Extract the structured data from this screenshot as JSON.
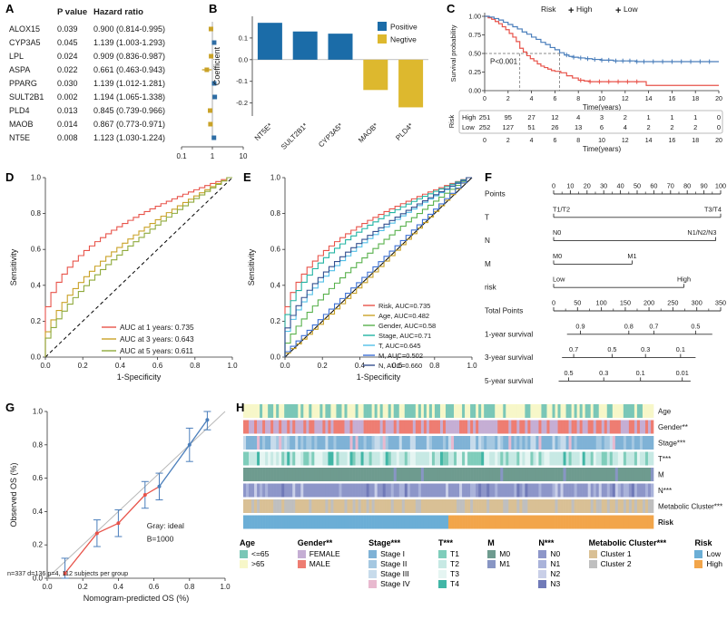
{
  "chart_data": [
    {
      "letter": "A",
      "type": "table",
      "subtype": "forest-plot",
      "headers": [
        "P value",
        "Hazard ratio"
      ],
      "rows": [
        {
          "gene": "ALOX15",
          "p": "0.039",
          "hr_text": "0.900 (0.814-0.995)",
          "hr": 0.9,
          "lo": 0.814,
          "hi": 0.995
        },
        {
          "gene": "CYP3A5",
          "p": "0.045",
          "hr_text": "1.139 (1.003-1.293)",
          "hr": 1.139,
          "lo": 1.003,
          "hi": 1.293
        },
        {
          "gene": "LPL",
          "p": "0.024",
          "hr_text": "0.909 (0.836-0.987)",
          "hr": 0.909,
          "lo": 0.836,
          "hi": 0.987
        },
        {
          "gene": "ASPA",
          "p": "0.022",
          "hr_text": "0.661 (0.463-0.943)",
          "hr": 0.661,
          "lo": 0.463,
          "hi": 0.943
        },
        {
          "gene": "PPARG",
          "p": "0.030",
          "hr_text": "1.139 (1.012-1.281)",
          "hr": 1.139,
          "lo": 1.012,
          "hi": 1.281
        },
        {
          "gene": "SULT2B1",
          "p": "0.002",
          "hr_text": "1.194 (1.065-1.338)",
          "hr": 1.194,
          "lo": 1.065,
          "hi": 1.338
        },
        {
          "gene": "PLD4",
          "p": "0.013",
          "hr_text": "0.845 (0.739-0.966)",
          "hr": 0.845,
          "lo": 0.739,
          "hi": 0.966
        },
        {
          "gene": "MAOB",
          "p": "0.014",
          "hr_text": "0.867 (0.773-0.971)",
          "hr": 0.867,
          "lo": 0.773,
          "hi": 0.971
        },
        {
          "gene": "NT5E",
          "p": "0.008",
          "hr_text": "1.123 (1.030-1.224)",
          "hr": 1.123,
          "lo": 1.03,
          "hi": 1.224
        }
      ],
      "x_ticks": [
        "0.1",
        "1",
        "10"
      ],
      "colors": {
        "up": "#2e6da4",
        "down": "#c9a227",
        "ref": "#999999"
      }
    },
    {
      "letter": "B",
      "type": "bar",
      "ylabel": "Coefficient",
      "categories": [
        "NT5E*",
        "SULT2B1*",
        "CYP3A5*",
        "MAOB*",
        "PLD4*"
      ],
      "values": [
        0.17,
        0.13,
        0.12,
        -0.14,
        -0.22
      ],
      "ylim": [
        -0.26,
        0.2
      ],
      "yticks": [
        "0.1",
        "0.0",
        "-0.1",
        "-0.2"
      ],
      "ytick_vals": [
        0.1,
        0.0,
        -0.1,
        -0.2
      ],
      "legend": [
        {
          "label": "Positive",
          "color": "#1b6ca8"
        },
        {
          "label": "Negtive",
          "color": "#ddb82e"
        }
      ]
    },
    {
      "letter": "C",
      "type": "line",
      "subtype": "kaplan-meier",
      "legend_title": "Risk",
      "series": [
        {
          "name": "High",
          "color": "#e8534a",
          "points": [
            [
              0,
              1
            ],
            [
              0.3,
              0.98
            ],
            [
              0.6,
              0.96
            ],
            [
              0.9,
              0.93
            ],
            [
              1.2,
              0.9
            ],
            [
              1.5,
              0.86
            ],
            [
              1.8,
              0.82
            ],
            [
              2.1,
              0.77
            ],
            [
              2.4,
              0.72
            ],
            [
              2.7,
              0.66
            ],
            [
              3,
              0.57
            ],
            [
              3.3,
              0.52
            ],
            [
              3.6,
              0.47
            ],
            [
              3.9,
              0.43
            ],
            [
              4.2,
              0.4
            ],
            [
              4.5,
              0.36
            ],
            [
              4.8,
              0.33
            ],
            [
              5.1,
              0.31
            ],
            [
              5.4,
              0.29
            ],
            [
              5.7,
              0.27
            ],
            [
              6,
              0.26
            ],
            [
              6.5,
              0.24
            ],
            [
              7,
              0.2
            ],
            [
              7.5,
              0.17
            ],
            [
              8,
              0.14
            ],
            [
              8.5,
              0.13
            ],
            [
              9,
              0.12
            ],
            [
              10,
              0.12
            ],
            [
              12,
              0.12
            ],
            [
              13.8,
              0.07
            ],
            [
              20,
              0.07
            ]
          ],
          "censors": [
            8.2,
            9,
            9.8,
            10.6,
            11.4,
            12.2,
            13
          ]
        },
        {
          "name": "Low",
          "color": "#4a7ebb",
          "points": [
            [
              0,
              1
            ],
            [
              0.4,
              0.99
            ],
            [
              0.8,
              0.97
            ],
            [
              1.2,
              0.95
            ],
            [
              1.6,
              0.92
            ],
            [
              2,
              0.89
            ],
            [
              2.4,
              0.86
            ],
            [
              2.8,
              0.83
            ],
            [
              3.2,
              0.79
            ],
            [
              3.6,
              0.76
            ],
            [
              4,
              0.72
            ],
            [
              4.4,
              0.69
            ],
            [
              4.8,
              0.65
            ],
            [
              5.2,
              0.62
            ],
            [
              5.6,
              0.58
            ],
            [
              6,
              0.55
            ],
            [
              6.4,
              0.51
            ],
            [
              6.8,
              0.48
            ],
            [
              7.2,
              0.46
            ],
            [
              7.6,
              0.45
            ],
            [
              8,
              0.44
            ],
            [
              8.6,
              0.43
            ],
            [
              9.2,
              0.42
            ],
            [
              10,
              0.41
            ],
            [
              11,
              0.4
            ],
            [
              12,
              0.4
            ],
            [
              13,
              0.39
            ],
            [
              20,
              0.39
            ]
          ],
          "censors": [
            7,
            7.6,
            8.2,
            8.8,
            9.4,
            10,
            10.6,
            11.2,
            11.8,
            12.4,
            13,
            13.6,
            14.4,
            15.2,
            16,
            16.8,
            17.6,
            18.4,
            19.2
          ]
        }
      ],
      "pvalue": "P<0.001",
      "ylabel": "Survival probability",
      "xlabel": "Time(years)",
      "yticks": [
        "0.00",
        "0.25",
        "0.50",
        "0.75",
        "1.00"
      ],
      "xticks": [
        0,
        2,
        4,
        6,
        8,
        10,
        12,
        14,
        16,
        18,
        20
      ],
      "xlim": [
        0,
        20
      ],
      "median": {
        "y": 0.5,
        "x1": 3,
        "x2": 6.4
      },
      "risk_table": {
        "axis_label": "Risk",
        "xlabel": "Time(years)",
        "rows": [
          {
            "name": "High",
            "color": "#e8534a",
            "counts": [
              251,
              95,
              27,
              12,
              4,
              3,
              2,
              1,
              1,
              1,
              0
            ]
          },
          {
            "name": "Low",
            "color": "#4a7ebb",
            "counts": [
              252,
              127,
              51,
              26,
              13,
              6,
              4,
              2,
              2,
              2,
              0
            ]
          }
        ]
      }
    },
    {
      "letter": "D",
      "type": "line",
      "subtype": "roc",
      "xlabel": "1-Specificity",
      "ylabel": "Sensitivity",
      "ticks": [
        "0.0",
        "0.2",
        "0.4",
        "0.6",
        "0.8",
        "1.0"
      ],
      "diagonal": "dashed",
      "series": [
        {
          "label": "AUC at 1 years: 0.735",
          "auc": 0.735,
          "color": "#e8534a"
        },
        {
          "label": "AUC at 3 years: 0.643",
          "auc": 0.643,
          "color": "#c9a227"
        },
        {
          "label": "AUC at 5 years: 0.611",
          "auc": 0.611,
          "color": "#8faa3c"
        }
      ]
    },
    {
      "letter": "E",
      "type": "line",
      "subtype": "roc",
      "xlabel": "1-Specificity",
      "ylabel": "Sensitivity",
      "ticks": [
        "0.0",
        "0.2",
        "0.4",
        "0.6",
        "0.8",
        "1.0"
      ],
      "diagonal": "solid",
      "series": [
        {
          "label": "Risk, AUC=0.735",
          "auc": 0.735,
          "color": "#e8534a"
        },
        {
          "label": "Age, AUC=0.482",
          "auc": 0.482,
          "color": "#c9a227"
        },
        {
          "label": "Gender, AUC=0.58",
          "auc": 0.58,
          "color": "#58b14c"
        },
        {
          "label": "Stage, AUC=0.71",
          "auc": 0.71,
          "color": "#21b3a2"
        },
        {
          "label": "T, AUC=0.645",
          "auc": 0.645,
          "color": "#52c0e8"
        },
        {
          "label": "M, AUC=0.502",
          "auc": 0.502,
          "color": "#3b6fd4"
        },
        {
          "label": "N, AUC=0.660",
          "auc": 0.66,
          "color": "#35508f"
        }
      ]
    },
    {
      "letter": "F",
      "type": "nomogram",
      "rows": [
        {
          "label": "Points",
          "minor": true,
          "line": [
            0,
            1
          ],
          "ticks": [
            {
              "p": 0,
              "t": "0"
            },
            {
              "p": 0.1,
              "t": "10"
            },
            {
              "p": 0.2,
              "t": "20"
            },
            {
              "p": 0.3,
              "t": "30"
            },
            {
              "p": 0.4,
              "t": "40"
            },
            {
              "p": 0.5,
              "t": "50"
            },
            {
              "p": 0.6,
              "t": "60"
            },
            {
              "p": 0.7,
              "t": "70"
            },
            {
              "p": 0.8,
              "t": "80"
            },
            {
              "p": 0.9,
              "t": "90"
            },
            {
              "p": 1,
              "t": "100"
            }
          ]
        },
        {
          "label": "T",
          "cat": true,
          "line": [
            0,
            1
          ],
          "ticks": [
            {
              "p": 0,
              "t": "T1/T2"
            },
            {
              "p": 1,
              "t": "T3/T4"
            }
          ]
        },
        {
          "label": "N",
          "cat": true,
          "line": [
            0,
            0.97
          ],
          "ticks": [
            {
              "p": 0,
              "t": "N0"
            },
            {
              "p": 0.97,
              "t": "N1/N2/N3"
            }
          ]
        },
        {
          "label": "M",
          "cat": true,
          "line": [
            0,
            0.47
          ],
          "ticks": [
            {
              "p": 0,
              "t": "M0"
            },
            {
              "p": 0.47,
              "t": "M1"
            }
          ]
        },
        {
          "label": "risk",
          "cat": true,
          "line": [
            0,
            0.78
          ],
          "ticks": [
            {
              "p": 0,
              "t": "Low"
            },
            {
              "p": 0.78,
              "t": "High"
            }
          ]
        },
        {
          "label": "Total Points",
          "minor": true,
          "line": [
            0,
            1
          ],
          "ticks": [
            {
              "p": 0,
              "t": "0"
            },
            {
              "p": 0.143,
              "t": "50"
            },
            {
              "p": 0.286,
              "t": "100"
            },
            {
              "p": 0.429,
              "t": "150"
            },
            {
              "p": 0.571,
              "t": "200"
            },
            {
              "p": 0.714,
              "t": "250"
            },
            {
              "p": 0.857,
              "t": "300"
            },
            {
              "p": 1,
              "t": "350"
            }
          ]
        },
        {
          "label": "1-year survival",
          "line": [
            0.08,
            0.95
          ],
          "ticks": [
            {
              "p": 0.16,
              "t": "0.9"
            },
            {
              "p": 0.45,
              "t": "0.8"
            },
            {
              "p": 0.6,
              "t": "0.7"
            },
            {
              "p": 0.85,
              "t": "0.5"
            }
          ]
        },
        {
          "label": "3-year survival",
          "line": [
            0.05,
            0.85
          ],
          "ticks": [
            {
              "p": 0.12,
              "t": "0.7"
            },
            {
              "p": 0.35,
              "t": "0.5"
            },
            {
              "p": 0.55,
              "t": "0.3"
            },
            {
              "p": 0.76,
              "t": "0.1"
            }
          ]
        },
        {
          "label": "5-year survival",
          "line": [
            0.03,
            0.82
          ],
          "ticks": [
            {
              "p": 0.09,
              "t": "0.5"
            },
            {
              "p": 0.3,
              "t": "0.3"
            },
            {
              "p": 0.52,
              "t": "0.1"
            },
            {
              "p": 0.77,
              "t": "0.01"
            }
          ]
        }
      ]
    },
    {
      "letter": "G",
      "type": "scatter",
      "subtype": "calibration",
      "xlabel": "Nomogram-predicted OS (%)",
      "ylabel": "Observed OS (%)",
      "ticks": [
        "0.0",
        "0.2",
        "0.4",
        "0.6",
        "0.8",
        "1.0"
      ],
      "points": {
        "x": [
          0.1,
          0.28,
          0.4,
          0.55,
          0.63,
          0.8,
          0.9
        ],
        "y": [
          0.03,
          0.27,
          0.33,
          0.5,
          0.55,
          0.8,
          0.95
        ],
        "err": [
          0.09,
          0.08,
          0.08,
          0.08,
          0.08,
          0.1,
          0.06
        ]
      },
      "seg_split": 4,
      "seg_colors": {
        "early": "#e8534a",
        "late": "#4a7ebb"
      },
      "err_color": "#4a7ebb",
      "annotations": {
        "ideal": "Gray: ideal",
        "boot": "B=1000",
        "note": "n=337 d=136 p=4, 112 subjects per group"
      }
    },
    {
      "letter": "H",
      "type": "heatmap",
      "subtype": "annotation-bars",
      "rows": [
        {
          "name": "Age",
          "cats": [
            {
              "label": "<=65",
              "color": "#7ac7b7",
              "w": 0.5
            },
            {
              "label": ">65",
              "color": "#f7f7c9",
              "w": 0.5
            }
          ]
        },
        {
          "name": "Gender**",
          "cats": [
            {
              "label": "FEMALE",
              "color": "#c5aed4",
              "w": 0.45
            },
            {
              "label": "MALE",
              "color": "#ee7d72",
              "w": 0.55
            }
          ]
        },
        {
          "name": "Stage***",
          "cats": [
            {
              "label": "Stage I",
              "color": "#7fb2d6",
              "w": 0.45
            },
            {
              "label": "Stage II",
              "color": "#a5c8e1",
              "w": 0.25
            },
            {
              "label": "Stage III",
              "color": "#c7dbeb",
              "w": 0.2
            },
            {
              "label": "Stage IV",
              "color": "#e8b9cf",
              "w": 0.1
            }
          ]
        },
        {
          "name": "T***",
          "cats": [
            {
              "label": "T1",
              "color": "#7fcdbb",
              "w": 0.2
            },
            {
              "label": "T2",
              "color": "#c7e9e4",
              "w": 0.45
            },
            {
              "label": "T3",
              "color": "#e5f5f2",
              "w": 0.25
            },
            {
              "label": "T4",
              "color": "#41b6a6",
              "w": 0.1
            }
          ]
        },
        {
          "name": "M",
          "cats": [
            {
              "label": "M0",
              "color": "#6e9b8f",
              "w": 0.97
            },
            {
              "label": "M1",
              "color": "#8896c4",
              "w": 0.03
            }
          ]
        },
        {
          "name": "N***",
          "cats": [
            {
              "label": "N0",
              "color": "#8d96c9",
              "w": 0.72
            },
            {
              "label": "N1",
              "color": "#aab3da",
              "w": 0.14
            },
            {
              "label": "N2",
              "color": "#c9cfe8",
              "w": 0.09
            },
            {
              "label": "N3",
              "color": "#707ab8",
              "w": 0.05
            }
          ]
        },
        {
          "name": "Metabolic Cluster***",
          "cats": [
            {
              "label": "Cluster 1",
              "color": "#d9c095",
              "w": 0.7
            },
            {
              "label": "Cluster 2",
              "color": "#bfbfbf",
              "w": 0.3
            }
          ]
        },
        {
          "name": "Risk",
          "bold": true,
          "split": true,
          "cats": [
            {
              "label": "Low",
              "color": "#6baed6",
              "w": 0.5
            },
            {
              "label": "High",
              "color": "#f2a54a",
              "w": 0.5
            }
          ]
        }
      ]
    }
  ]
}
